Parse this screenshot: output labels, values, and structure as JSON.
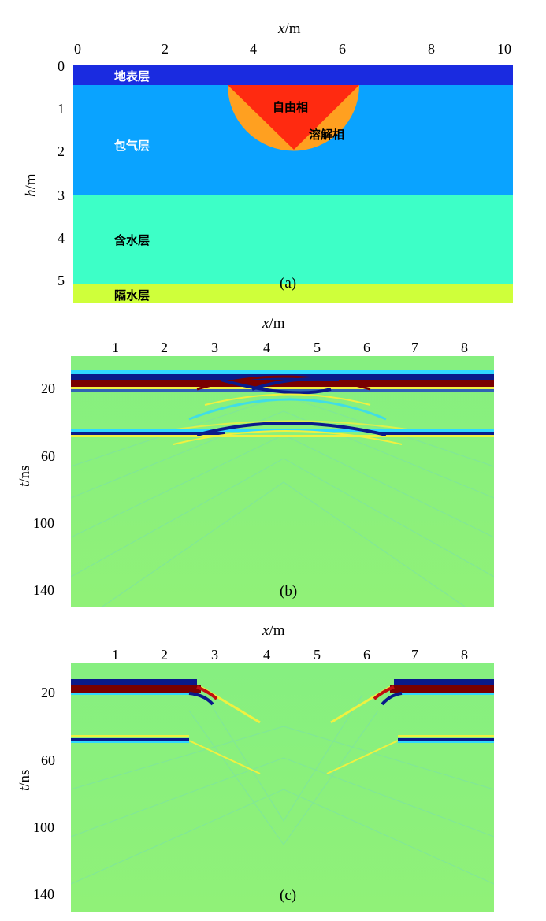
{
  "panel_a": {
    "tag": "(a)",
    "x_axis": {
      "label_var": "x",
      "label_unit": "/m",
      "ticks": [
        "0",
        "2",
        "4",
        "6",
        "8",
        "10"
      ]
    },
    "y_axis": {
      "label_var": "h",
      "label_unit": "/m",
      "ticks": [
        "0",
        "1",
        "2",
        "3",
        "4",
        "5"
      ]
    },
    "layers": [
      {
        "name": "地表层",
        "top_m": 0.0,
        "bottom_m": 0.5,
        "color": "#1a2be0"
      },
      {
        "name": "包气层",
        "top_m": 0.5,
        "bottom_m": 3.0,
        "color": "#0aa3ff"
      },
      {
        "name": "含水层",
        "top_m": 3.0,
        "bottom_m": 5.0,
        "color": "#3dffc7"
      },
      {
        "name": "隔水层",
        "top_m": 5.0,
        "bottom_m": 5.5,
        "color": "#cfff3a"
      }
    ],
    "inclusion": {
      "free_phase_label": "自由相",
      "dissolved_phase_label": "溶解相",
      "free_phase_color": "#ff2a10",
      "dissolved_phase_color": "#ffa020"
    }
  },
  "panel_b": {
    "tag": "(b)",
    "x_axis": {
      "label_var": "x",
      "label_unit": "/m",
      "ticks": [
        "1",
        "2",
        "3",
        "4",
        "5",
        "6",
        "7",
        "8"
      ]
    },
    "y_axis": {
      "label_var": "t",
      "label_unit": "/ns",
      "ticks": [
        "20",
        "60",
        "100",
        "140"
      ]
    }
  },
  "panel_c": {
    "tag": "(c)",
    "x_axis": {
      "label_var": "x",
      "label_unit": "/m",
      "ticks": [
        "1",
        "2",
        "3",
        "4",
        "5",
        "6",
        "7",
        "8"
      ]
    },
    "y_axis": {
      "label_var": "t",
      "label_unit": "/ns",
      "ticks": [
        "20",
        "60",
        "100",
        "140"
      ]
    }
  },
  "colors": {
    "background_field": "#8cf07a",
    "reflection_dark_red": "#7a0000",
    "reflection_dark_blue": "#0a1a8a",
    "reflection_cyan": "#30d8ff",
    "reflection_yellow": "#f0f040"
  }
}
